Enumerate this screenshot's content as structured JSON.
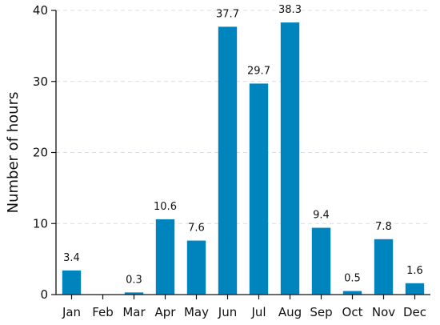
{
  "chart_data": {
    "type": "bar",
    "title": "",
    "xlabel": "",
    "ylabel": "Number of hours",
    "categories": [
      "Jan",
      "Feb",
      "Mar",
      "Apr",
      "May",
      "Jun",
      "Jul",
      "Aug",
      "Sep",
      "Oct",
      "Nov",
      "Dec"
    ],
    "values": [
      3.4,
      0,
      0.3,
      10.6,
      7.6,
      37.7,
      29.7,
      38.3,
      9.4,
      0.5,
      7.8,
      1.6
    ],
    "data_labels": [
      "3.4",
      "",
      "0.3",
      "10.6",
      "7.6",
      "37.7",
      "29.7",
      "38.3",
      "9.4",
      "0.5",
      "7.8",
      "1.6"
    ],
    "ylim": [
      0,
      40
    ],
    "yticks": [
      0,
      10,
      20,
      30,
      40
    ],
    "grid": "horizontal dashed",
    "legend": "none",
    "colors": {
      "bar": "#0084bd",
      "axis": "#111111",
      "grid": "#d9dde3"
    }
  }
}
